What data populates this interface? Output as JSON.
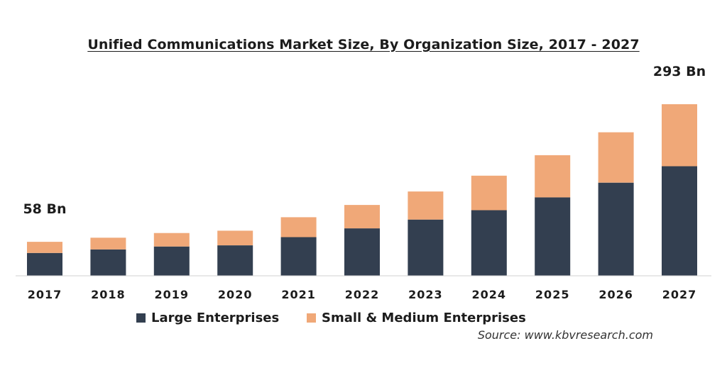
{
  "chart_data": {
    "type": "bar",
    "stacked": true,
    "title": "Unified Communications Market Size, By Organization Size, 2017 - 2027",
    "xlabel": "",
    "ylabel": "",
    "ylim": [
      0,
      300
    ],
    "grid": false,
    "legend_position": "bottom",
    "categories": [
      "2017",
      "2018",
      "2019",
      "2020",
      "2021",
      "2022",
      "2023",
      "2024",
      "2025",
      "2026",
      "2027"
    ],
    "series": [
      {
        "name": "Large Enterprises",
        "color": "#333f50",
        "values": [
          39,
          45,
          50,
          52,
          66,
          81,
          96,
          112,
          134,
          159,
          187
        ]
      },
      {
        "name": "Small & Medium Enterprises",
        "color": "#f0a878",
        "values": [
          19,
          20,
          23,
          25,
          34,
          40,
          48,
          59,
          72,
          86,
          106
        ]
      }
    ],
    "annotations": [
      {
        "category": "2017",
        "text": "58 Bn"
      },
      {
        "category": "2027",
        "text": "293 Bn"
      }
    ],
    "source": "Source: www.kbvresearch.com"
  }
}
